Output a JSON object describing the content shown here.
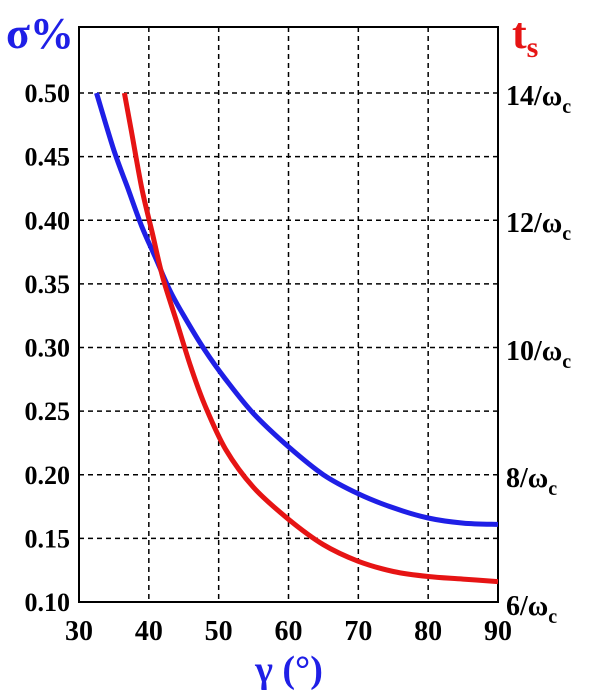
{
  "chart_data": {
    "type": "line",
    "x_label": "γ (°)",
    "y_left_label": "σ%",
    "y_right_label_main": "t",
    "y_right_label_sub": "s",
    "x_ticks": [
      "30",
      "40",
      "50",
      "60",
      "70",
      "80",
      "90"
    ],
    "x_range": [
      30,
      90
    ],
    "y_left_ticks": [
      "0.10",
      "0.15",
      "0.20",
      "0.25",
      "0.30",
      "0.35",
      "0.40",
      "0.45",
      "0.50"
    ],
    "y_left_range": [
      0.1,
      0.5
    ],
    "y_right_ticks": [
      {
        "main": "14",
        "sub": "c",
        "pre": "/ω"
      },
      {
        "main": "12",
        "sub": "c",
        "pre": "/ω"
      },
      {
        "main": "10",
        "sub": "c",
        "pre": "/ω"
      },
      {
        "main": "8",
        "sub": "c",
        "pre": "/ω"
      },
      {
        "main": "6",
        "sub": "c",
        "pre": "/ω"
      }
    ],
    "y_right_values": [
      14,
      12,
      10,
      8,
      6
    ],
    "grid": true,
    "series": [
      {
        "color": "#1f1fe6",
        "axis": "left",
        "points": [
          [
            32.5,
            0.5
          ],
          [
            35,
            0.455
          ],
          [
            37,
            0.425
          ],
          [
            39,
            0.395
          ],
          [
            41,
            0.37
          ],
          [
            43,
            0.345
          ],
          [
            45,
            0.325
          ],
          [
            48,
            0.298
          ],
          [
            51,
            0.275
          ],
          [
            55,
            0.248
          ],
          [
            60,
            0.222
          ],
          [
            65,
            0.2
          ],
          [
            70,
            0.185
          ],
          [
            75,
            0.174
          ],
          [
            80,
            0.166
          ],
          [
            85,
            0.162
          ],
          [
            90,
            0.161
          ]
        ]
      },
      {
        "color": "#e61414",
        "axis": "left",
        "points": [
          [
            36.5,
            0.5
          ],
          [
            37.5,
            0.47
          ],
          [
            39,
            0.425
          ],
          [
            40.5,
            0.39
          ],
          [
            42,
            0.355
          ],
          [
            44,
            0.32
          ],
          [
            46,
            0.285
          ],
          [
            48,
            0.255
          ],
          [
            51,
            0.22
          ],
          [
            55,
            0.19
          ],
          [
            60,
            0.165
          ],
          [
            65,
            0.145
          ],
          [
            70,
            0.132
          ],
          [
            75,
            0.124
          ],
          [
            80,
            0.12
          ],
          [
            85,
            0.118
          ],
          [
            90,
            0.116
          ]
        ]
      }
    ]
  }
}
